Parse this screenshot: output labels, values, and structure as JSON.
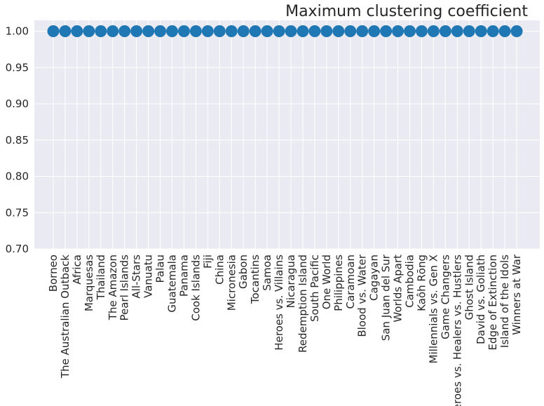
{
  "chart_data": {
    "type": "scatter",
    "title": "Maximum clustering coefficient",
    "xlabel": "",
    "ylabel": "",
    "categories": [
      "Borneo",
      "The Australian Outback",
      "Africa",
      "Marquesas",
      "Thailand",
      "The Amazon",
      "Pearl Islands",
      "All-Stars",
      "Vanuatu",
      "Palau",
      "Guatemala",
      "Panama",
      "Cook Islands",
      "Fiji",
      "China",
      "Micronesia",
      "Gabon",
      "Tocantins",
      "Samoa",
      "Heroes vs. Villains",
      "Nicaragua",
      "Redemption Island",
      "South Pacific",
      "One World",
      "Philippines",
      "Caramoan",
      "Blood vs. Water",
      "Cagayan",
      "San Juan del Sur",
      "Worlds Apart",
      "Cambodia",
      "Kaôh Rōng",
      "Millennials vs. Gen X",
      "Game Changers",
      "Heroes vs. Healers vs. Hustlers",
      "Ghost Island",
      "David vs. Goliath",
      "Edge of Extinction",
      "Island of the Idols",
      "Winners at War"
    ],
    "values": [
      1.0,
      1.0,
      1.0,
      1.0,
      1.0,
      1.0,
      1.0,
      1.0,
      1.0,
      1.0,
      1.0,
      1.0,
      1.0,
      1.0,
      1.0,
      1.0,
      1.0,
      1.0,
      1.0,
      1.0,
      1.0,
      1.0,
      1.0,
      1.0,
      1.0,
      1.0,
      1.0,
      1.0,
      1.0,
      1.0,
      1.0,
      1.0,
      1.0,
      1.0,
      1.0,
      1.0,
      1.0,
      1.0,
      1.0,
      1.0
    ],
    "ylim": [
      0.7,
      1.015
    ],
    "yticks": [
      0.7,
      0.75,
      0.8,
      0.85,
      0.9,
      0.95,
      1.0
    ],
    "ytick_labels": [
      "0.70",
      "0.75",
      "0.80",
      "0.85",
      "0.90",
      "0.95",
      "1.00"
    ],
    "grid": true,
    "colors": {
      "marker": "#1f77b4",
      "background": "#eaeaf2",
      "grid": "#ffffff",
      "text": "#262626"
    }
  }
}
